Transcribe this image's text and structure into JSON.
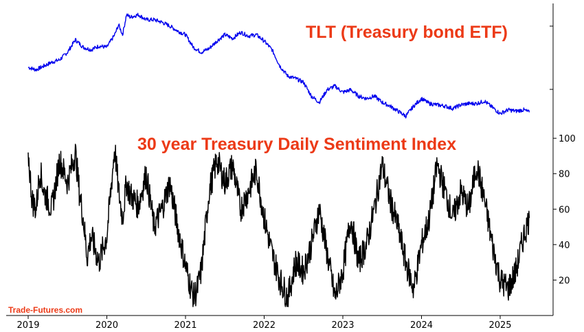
{
  "source_label": "Trade-Futures.com",
  "colors": {
    "tlt_line": "#0000ee",
    "dsi_line": "#000000",
    "title": "#ec3a17",
    "axis": "#000000"
  },
  "chart_data": [
    {
      "type": "line",
      "title": "TLT (Treasury bond ETF)",
      "series": [
        {
          "name": "",
          "x": [
            2019.0,
            2019.1,
            2019.2,
            2019.3,
            2019.4,
            2019.5,
            2019.6,
            2019.7,
            2019.8,
            2019.9,
            2020.0,
            2020.1,
            2020.15,
            2020.2,
            2020.25,
            2020.3,
            2020.4,
            2020.5,
            2020.6,
            2020.7,
            2020.8,
            2020.9,
            2021.0,
            2021.1,
            2021.2,
            2021.3,
            2021.4,
            2021.5,
            2021.6,
            2021.7,
            2021.8,
            2021.9,
            2022.0,
            2022.1,
            2022.2,
            2022.3,
            2022.4,
            2022.5,
            2022.6,
            2022.7,
            2022.8,
            2022.9,
            2023.0,
            2023.1,
            2023.2,
            2023.3,
            2023.4,
            2023.5,
            2023.6,
            2023.7,
            2023.8,
            2023.9,
            2024.0,
            2024.1,
            2024.2,
            2024.3,
            2024.4,
            2024.5,
            2024.6,
            2024.7,
            2024.8,
            2024.9,
            2025.0,
            2025.1,
            2025.2,
            2025.3,
            2025.37
          ],
          "values": [
            124,
            122,
            125,
            128,
            130,
            136,
            146,
            140,
            138,
            141,
            140,
            150,
            158,
            150,
            166,
            164,
            166,
            162,
            162,
            160,
            157,
            153,
            150,
            140,
            136,
            139,
            145,
            150,
            147,
            152,
            149,
            150,
            145,
            138,
            125,
            117,
            115,
            112,
            101,
            96,
            106,
            109,
            104,
            106,
            101,
            99,
            101,
            96,
            93,
            89,
            85,
            93,
            99,
            95,
            94,
            93,
            91,
            94,
            95,
            95,
            97,
            92,
            87,
            90,
            89,
            90,
            88
          ]
        }
      ],
      "ylim": [
        80,
        175
      ]
    },
    {
      "type": "line",
      "title": "30 year Treasury Daily Sentiment Index",
      "series": [
        {
          "name": "",
          "x": [
            2019.0,
            2019.05,
            2019.1,
            2019.15,
            2019.2,
            2019.3,
            2019.4,
            2019.5,
            2019.6,
            2019.65,
            2019.7,
            2019.75,
            2019.8,
            2019.9,
            2020.0,
            2020.1,
            2020.15,
            2020.2,
            2020.25,
            2020.3,
            2020.4,
            2020.5,
            2020.6,
            2020.7,
            2020.8,
            2020.9,
            2021.0,
            2021.1,
            2021.15,
            2021.2,
            2021.3,
            2021.4,
            2021.5,
            2021.6,
            2021.7,
            2021.8,
            2021.9,
            2022.0,
            2022.1,
            2022.2,
            2022.3,
            2022.4,
            2022.5,
            2022.6,
            2022.7,
            2022.8,
            2022.9,
            2023.0,
            2023.1,
            2023.2,
            2023.3,
            2023.4,
            2023.5,
            2023.6,
            2023.7,
            2023.8,
            2023.9,
            2024.0,
            2024.1,
            2024.2,
            2024.3,
            2024.4,
            2024.5,
            2024.6,
            2024.7,
            2024.8,
            2024.9,
            2025.0,
            2025.1,
            2025.2,
            2025.3,
            2025.37
          ],
          "values": [
            92,
            65,
            60,
            82,
            70,
            60,
            88,
            75,
            92,
            70,
            55,
            33,
            45,
            30,
            45,
            95,
            70,
            55,
            75,
            68,
            62,
            80,
            50,
            60,
            75,
            50,
            28,
            10,
            15,
            25,
            70,
            88,
            75,
            85,
            60,
            70,
            82,
            55,
            35,
            20,
            10,
            30,
            25,
            40,
            60,
            35,
            10,
            25,
            55,
            30,
            40,
            60,
            85,
            65,
            50,
            30,
            15,
            40,
            55,
            85,
            70,
            55,
            70,
            60,
            85,
            65,
            40,
            20,
            15,
            25,
            45,
            55
          ],
          "color": "#000000"
        }
      ],
      "ylim": [
        0,
        102
      ],
      "y_ticks": [
        "20",
        "40",
        "60",
        "80",
        "100"
      ],
      "x_ticks": [
        "2019",
        "2020",
        "2021",
        "2022",
        "2023",
        "2024",
        "2025"
      ]
    }
  ]
}
